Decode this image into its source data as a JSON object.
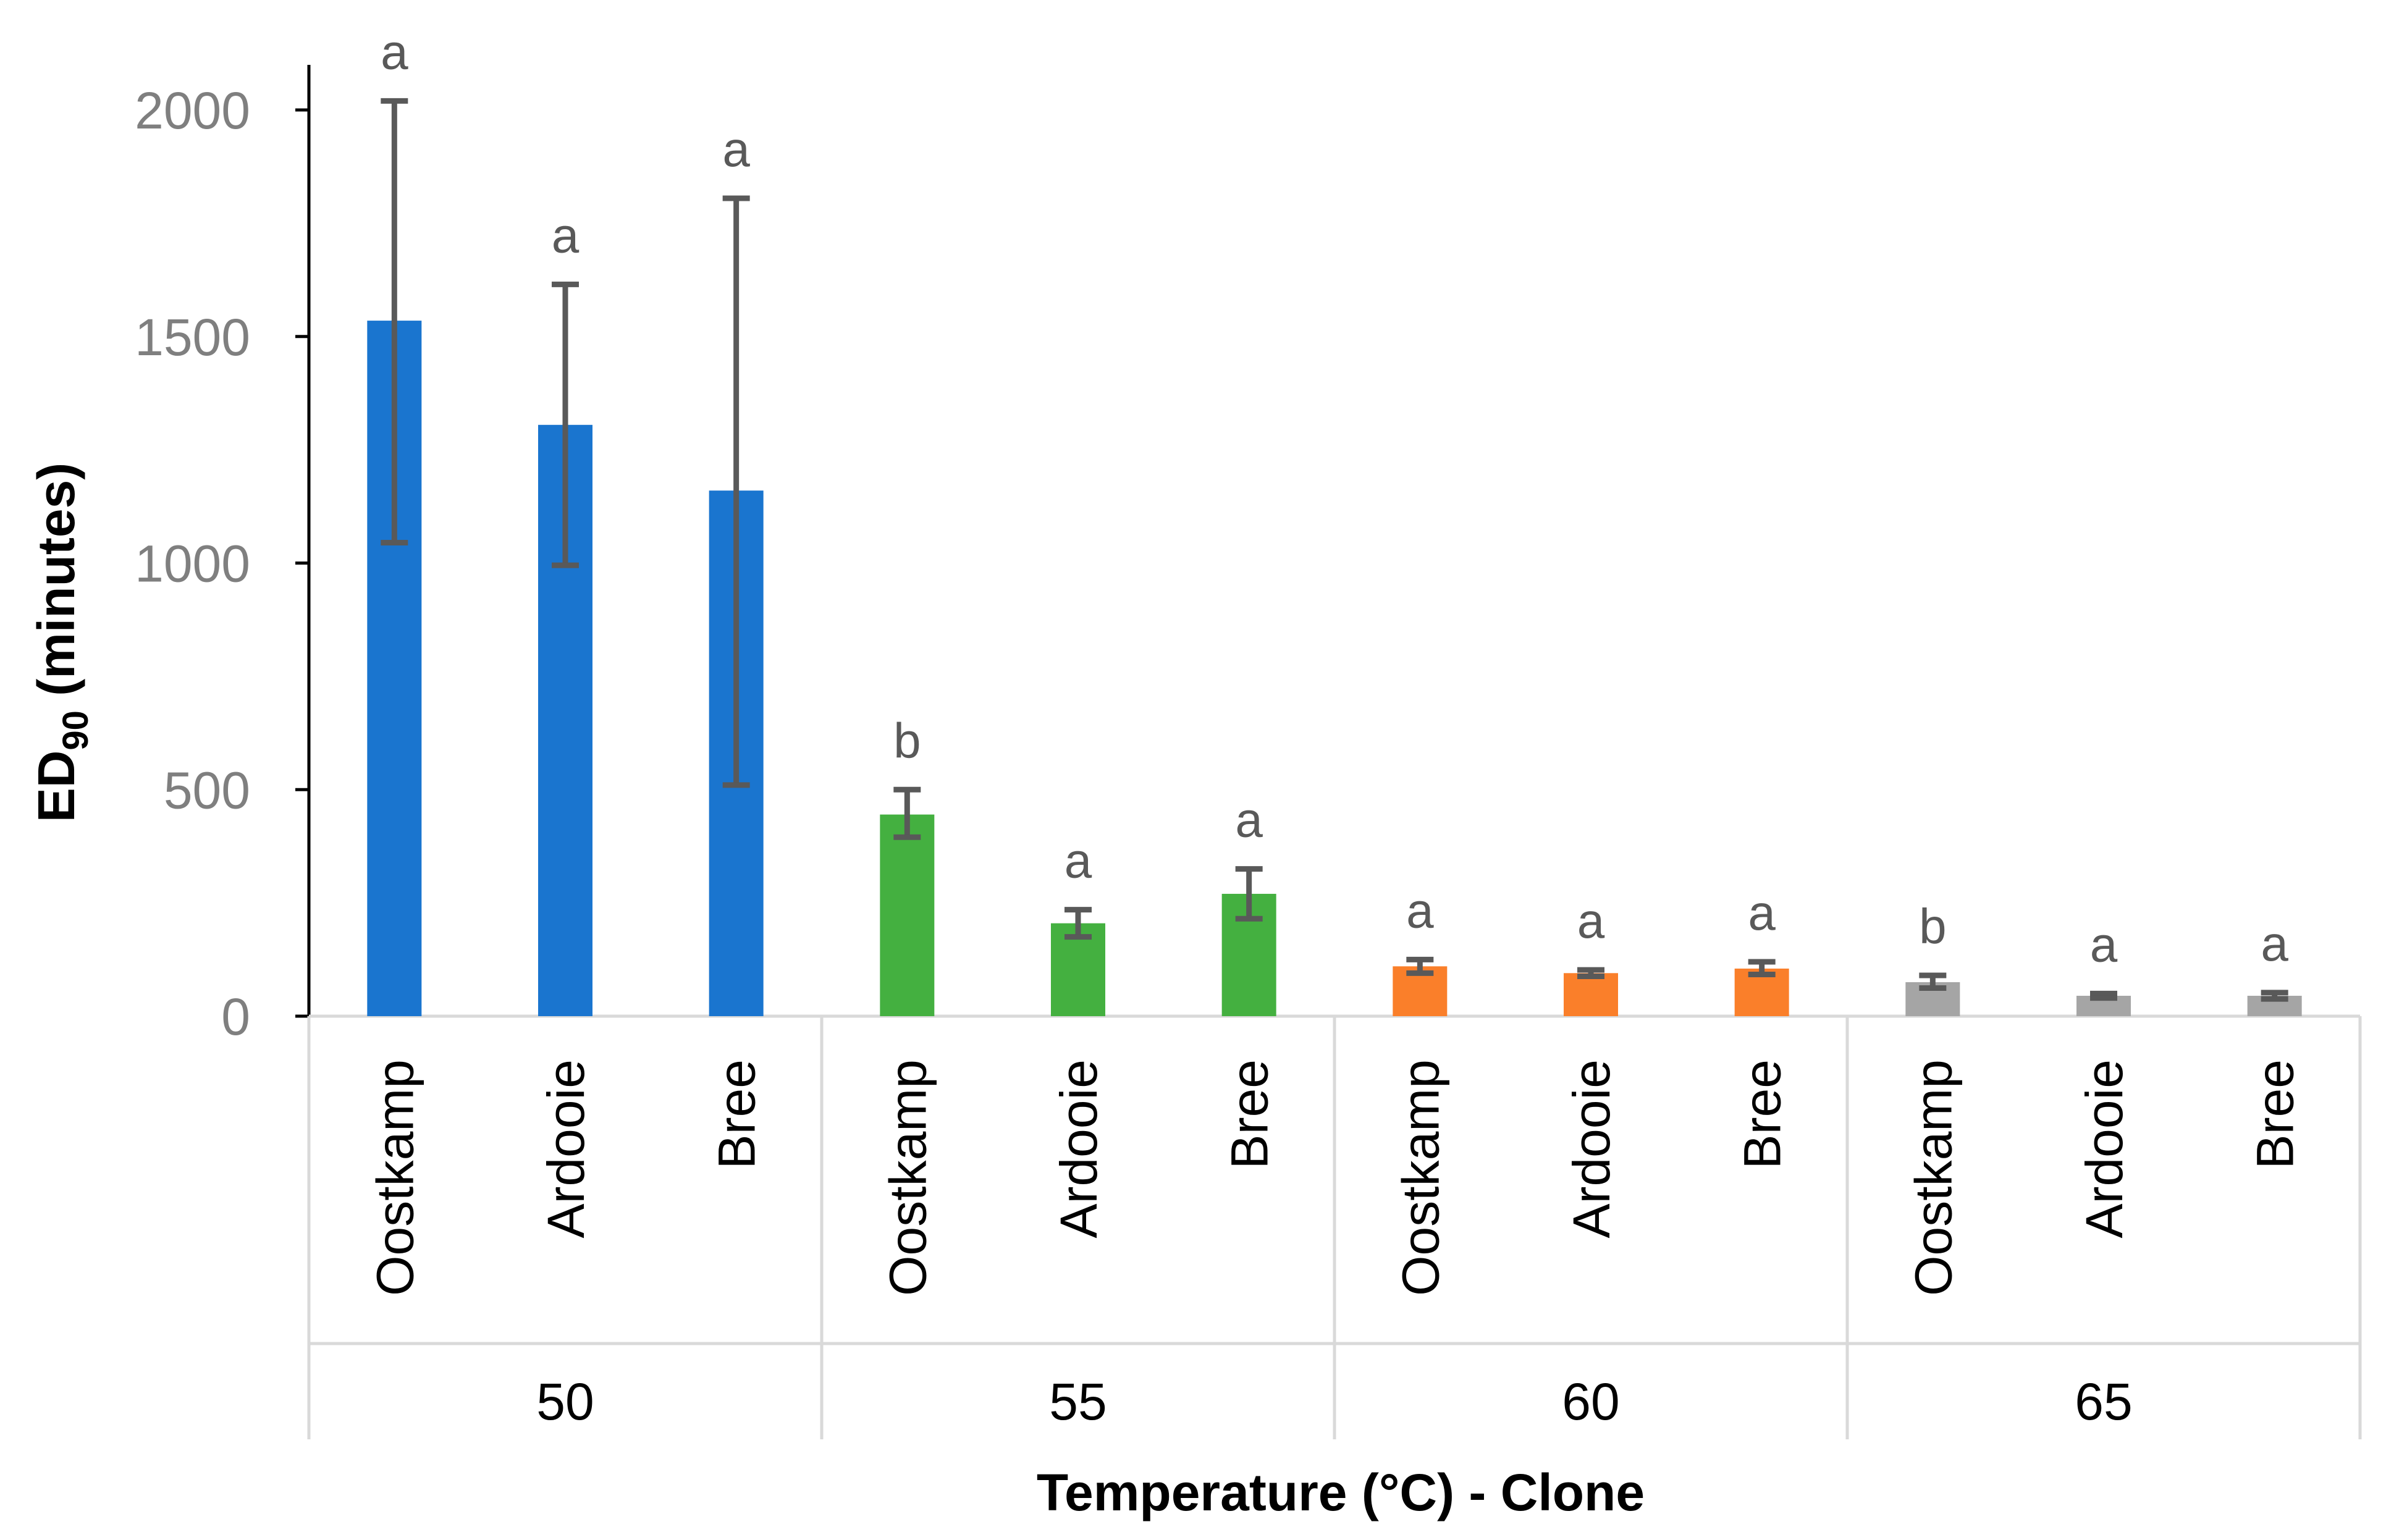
{
  "chart_data": {
    "type": "bar",
    "title": "",
    "ylabel": {
      "main": "ED",
      "subscript": "90",
      "suffix": " (minutes)"
    },
    "xlabel": "Temperature (°C) - Clone",
    "ylim": [
      0,
      2100
    ],
    "yticks": [
      "0",
      "500",
      "1000",
      "1500",
      "2000"
    ],
    "grid": false,
    "legend": "none",
    "groups": [
      {
        "temperature": "50",
        "color": "#1a75cf",
        "bars": [
          {
            "clone": "Oostkamp",
            "value": 1535,
            "err_low": 1045,
            "err_high": 2020,
            "letter": "a"
          },
          {
            "clone": "Ardooie",
            "value": 1305,
            "err_low": 995,
            "err_high": 1615,
            "letter": "a"
          },
          {
            "clone": "Bree",
            "value": 1160,
            "err_low": 510,
            "err_high": 1805,
            "letter": "a"
          }
        ]
      },
      {
        "temperature": "55",
        "color": "#44b040",
        "bars": [
          {
            "clone": "Oostkamp",
            "value": 445,
            "err_low": 395,
            "err_high": 500,
            "letter": "b"
          },
          {
            "clone": "Ardooie",
            "value": 205,
            "err_low": 175,
            "err_high": 235,
            "letter": "a"
          },
          {
            "clone": "Bree",
            "value": 270,
            "err_low": 215,
            "err_high": 325,
            "letter": "a"
          }
        ]
      },
      {
        "temperature": "60",
        "color": "#fa7f2a",
        "bars": [
          {
            "clone": "Oostkamp",
            "value": 110,
            "err_low": 95,
            "err_high": 125,
            "letter": "a"
          },
          {
            "clone": "Ardooie",
            "value": 95,
            "err_low": 88,
            "err_high": 102,
            "letter": "a"
          },
          {
            "clone": "Bree",
            "value": 105,
            "err_low": 92,
            "err_high": 120,
            "letter": "a"
          }
        ]
      },
      {
        "temperature": "65",
        "color": "#a5a5a5",
        "bars": [
          {
            "clone": "Oostkamp",
            "value": 75,
            "err_low": 62,
            "err_high": 90,
            "letter": "b"
          },
          {
            "clone": "Ardooie",
            "value": 45,
            "err_low": 40,
            "err_high": 50,
            "letter": "a"
          },
          {
            "clone": "Bree",
            "value": 45,
            "err_low": 38,
            "err_high": 52,
            "letter": "a"
          }
        ]
      }
    ]
  }
}
